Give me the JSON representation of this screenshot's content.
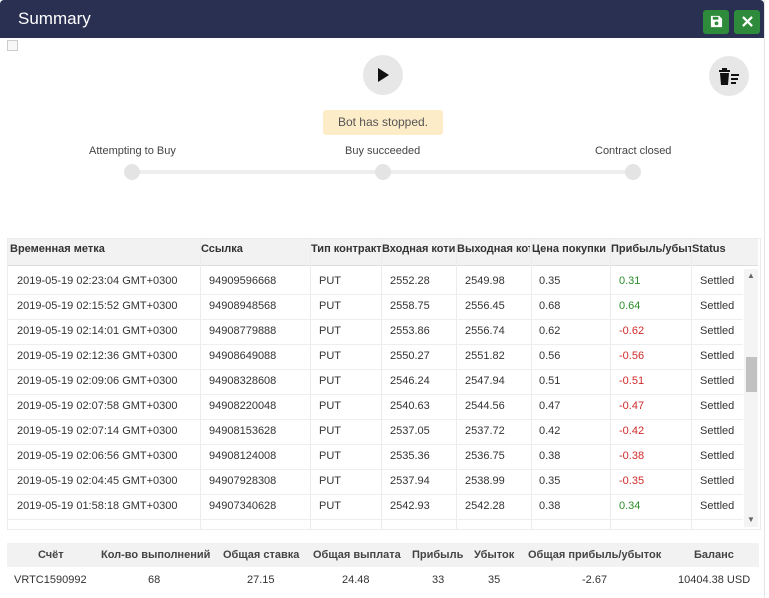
{
  "window": {
    "title": "Summary"
  },
  "toolbar": {
    "save_icon": "save-icon",
    "close_icon": "close-icon"
  },
  "controls": {
    "run_icon": "play-icon",
    "clear_icon": "trash-list-icon"
  },
  "status": {
    "message": "Bot has stopped."
  },
  "steps": [
    "Attempting to Buy",
    "Buy succeeded",
    "Contract closed"
  ],
  "table": {
    "headers": [
      "Временная метка",
      "Ссылка",
      "Тип контракта",
      "Входная котировка",
      "Выходная котировка",
      "Цена покупки",
      "Прибыль/убыток",
      "Status"
    ],
    "rows": [
      [
        "2019-05-19 02:23:04 GMT+0300",
        "94909596668",
        "PUT",
        "2552.28",
        "2549.98",
        "0.35",
        "0.31",
        "Settled"
      ],
      [
        "2019-05-19 02:15:52 GMT+0300",
        "94908948568",
        "PUT",
        "2558.75",
        "2556.45",
        "0.68",
        "0.64",
        "Settled"
      ],
      [
        "2019-05-19 02:14:01 GMT+0300",
        "94908779888",
        "PUT",
        "2553.86",
        "2556.74",
        "0.62",
        "-0.62",
        "Settled"
      ],
      [
        "2019-05-19 02:12:36 GMT+0300",
        "94908649088",
        "PUT",
        "2550.27",
        "2551.82",
        "0.56",
        "-0.56",
        "Settled"
      ],
      [
        "2019-05-19 02:09:06 GMT+0300",
        "94908328608",
        "PUT",
        "2546.24",
        "2547.94",
        "0.51",
        "-0.51",
        "Settled"
      ],
      [
        "2019-05-19 02:07:58 GMT+0300",
        "94908220048",
        "PUT",
        "2540.63",
        "2544.56",
        "0.47",
        "-0.47",
        "Settled"
      ],
      [
        "2019-05-19 02:07:14 GMT+0300",
        "94908153628",
        "PUT",
        "2537.05",
        "2537.72",
        "0.42",
        "-0.42",
        "Settled"
      ],
      [
        "2019-05-19 02:06:56 GMT+0300",
        "94908124008",
        "PUT",
        "2535.36",
        "2536.75",
        "0.38",
        "-0.38",
        "Settled"
      ],
      [
        "2019-05-19 02:04:45 GMT+0300",
        "94907928308",
        "PUT",
        "2537.94",
        "2538.99",
        "0.35",
        "-0.35",
        "Settled"
      ],
      [
        "2019-05-19 01:58:18 GMT+0300",
        "94907340628",
        "PUT",
        "2542.93",
        "2542.28",
        "0.38",
        "0.34",
        "Settled"
      ]
    ]
  },
  "summary": {
    "headers": [
      "Счёт",
      "Кол-во выполнений",
      "Общая ставка",
      "Общая выплата",
      "Прибыль",
      "Убыток",
      "Общая прибыль/убыток",
      "Баланс"
    ],
    "values": [
      "VRTC1590992",
      "68",
      "27.15",
      "24.48",
      "33",
      "35",
      "-2.67",
      "10404.38 USD"
    ]
  },
  "colors": {
    "titlebar": "#2a3052",
    "button_green": "#2e8b3c",
    "profit": "#2c8d2c",
    "loss": "#d02a2a",
    "status_bg": "#fdecc8"
  }
}
